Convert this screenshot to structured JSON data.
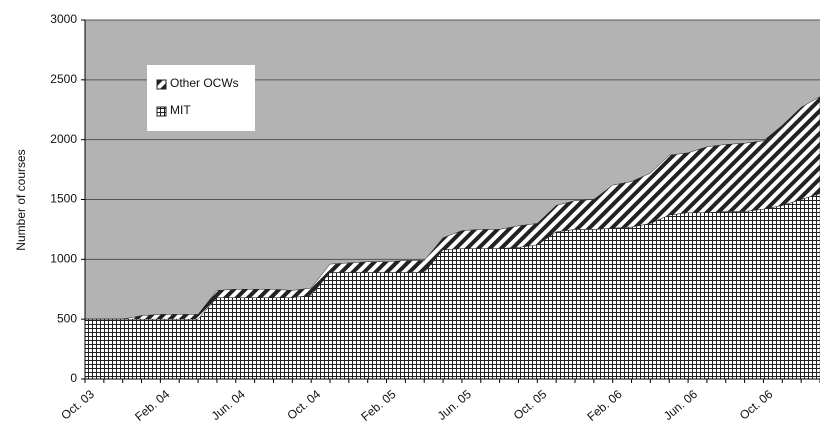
{
  "chart_data": {
    "type": "stacked_area",
    "y_label": "Number of courses",
    "categories": [
      "Oct. 03",
      null,
      null,
      null,
      "Feb. 04",
      null,
      null,
      null,
      "Jun. 04",
      null,
      null,
      null,
      "Oct. 04",
      null,
      null,
      null,
      "Feb. 05",
      null,
      null,
      null,
      "Jun. 05",
      null,
      null,
      null,
      "Oct. 05",
      null,
      null,
      null,
      "Feb. 06",
      null,
      null,
      null,
      "Jun. 06",
      null,
      null,
      null,
      "Oct. 06",
      null,
      null,
      null
    ],
    "series": [
      {
        "name": "MIT",
        "color": "#222222",
        "pattern": "grid",
        "values": [
          500,
          500,
          500,
          500,
          500,
          500,
          500,
          680,
          680,
          680,
          680,
          680,
          700,
          890,
          890,
          890,
          890,
          890,
          890,
          1080,
          1090,
          1090,
          1090,
          1100,
          1120,
          1230,
          1250,
          1250,
          1260,
          1270,
          1300,
          1370,
          1390,
          1390,
          1400,
          1400,
          1420,
          1450,
          1500,
          1550
        ]
      },
      {
        "name": "Other OCWs",
        "color": "#222222",
        "pattern": "diagonal",
        "values": [
          0,
          0,
          0,
          30,
          40,
          40,
          40,
          60,
          70,
          70,
          70,
          60,
          60,
          70,
          80,
          90,
          90,
          100,
          100,
          100,
          150,
          160,
          160,
          180,
          180,
          220,
          240,
          250,
          360,
          380,
          420,
          500,
          500,
          550,
          560,
          570,
          570,
          670,
          770,
          810
        ]
      }
    ],
    "ylim": [
      0,
      3000
    ],
    "yticks": [
      0,
      500,
      1000,
      1500,
      2000,
      2500,
      3000
    ],
    "grid": true,
    "legend": "upper-left"
  }
}
